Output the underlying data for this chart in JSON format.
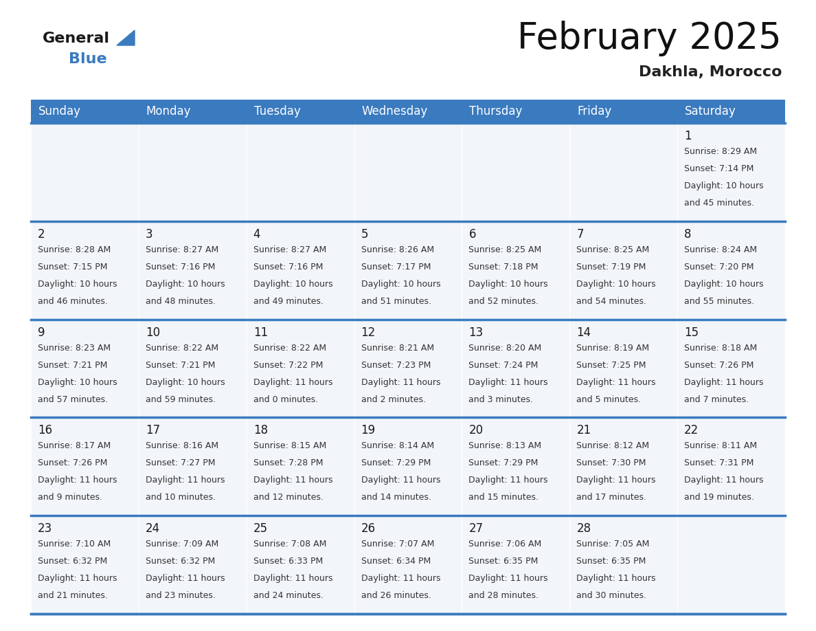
{
  "title": "February 2025",
  "subtitle": "Dakhla, Morocco",
  "days_of_week": [
    "Sunday",
    "Monday",
    "Tuesday",
    "Wednesday",
    "Thursday",
    "Friday",
    "Saturday"
  ],
  "header_bg": "#3a7abf",
  "header_text": "#ffffff",
  "cell_bg": "#f2f5f9",
  "day_number_color": "#1a1a1a",
  "text_color": "#333333",
  "grid_line_color": "#3a7abf",
  "logo_general_color": "#1a1a1a",
  "logo_blue_color": "#3a7abf",
  "logo_triangle_color": "#3a7abf",
  "calendar": [
    [
      null,
      null,
      null,
      null,
      null,
      null,
      {
        "day": 1,
        "sunrise": "8:29 AM",
        "sunset": "7:14 PM",
        "daylight": "10 hours and 45 minutes."
      }
    ],
    [
      {
        "day": 2,
        "sunrise": "8:28 AM",
        "sunset": "7:15 PM",
        "daylight": "10 hours and 46 minutes."
      },
      {
        "day": 3,
        "sunrise": "8:27 AM",
        "sunset": "7:16 PM",
        "daylight": "10 hours and 48 minutes."
      },
      {
        "day": 4,
        "sunrise": "8:27 AM",
        "sunset": "7:16 PM",
        "daylight": "10 hours and 49 minutes."
      },
      {
        "day": 5,
        "sunrise": "8:26 AM",
        "sunset": "7:17 PM",
        "daylight": "10 hours and 51 minutes."
      },
      {
        "day": 6,
        "sunrise": "8:25 AM",
        "sunset": "7:18 PM",
        "daylight": "10 hours and 52 minutes."
      },
      {
        "day": 7,
        "sunrise": "8:25 AM",
        "sunset": "7:19 PM",
        "daylight": "10 hours and 54 minutes."
      },
      {
        "day": 8,
        "sunrise": "8:24 AM",
        "sunset": "7:20 PM",
        "daylight": "10 hours and 55 minutes."
      }
    ],
    [
      {
        "day": 9,
        "sunrise": "8:23 AM",
        "sunset": "7:21 PM",
        "daylight": "10 hours and 57 minutes."
      },
      {
        "day": 10,
        "sunrise": "8:22 AM",
        "sunset": "7:21 PM",
        "daylight": "10 hours and 59 minutes."
      },
      {
        "day": 11,
        "sunrise": "8:22 AM",
        "sunset": "7:22 PM",
        "daylight": "11 hours and 0 minutes."
      },
      {
        "day": 12,
        "sunrise": "8:21 AM",
        "sunset": "7:23 PM",
        "daylight": "11 hours and 2 minutes."
      },
      {
        "day": 13,
        "sunrise": "8:20 AM",
        "sunset": "7:24 PM",
        "daylight": "11 hours and 3 minutes."
      },
      {
        "day": 14,
        "sunrise": "8:19 AM",
        "sunset": "7:25 PM",
        "daylight": "11 hours and 5 minutes."
      },
      {
        "day": 15,
        "sunrise": "8:18 AM",
        "sunset": "7:26 PM",
        "daylight": "11 hours and 7 minutes."
      }
    ],
    [
      {
        "day": 16,
        "sunrise": "8:17 AM",
        "sunset": "7:26 PM",
        "daylight": "11 hours and 9 minutes."
      },
      {
        "day": 17,
        "sunrise": "8:16 AM",
        "sunset": "7:27 PM",
        "daylight": "11 hours and 10 minutes."
      },
      {
        "day": 18,
        "sunrise": "8:15 AM",
        "sunset": "7:28 PM",
        "daylight": "11 hours and 12 minutes."
      },
      {
        "day": 19,
        "sunrise": "8:14 AM",
        "sunset": "7:29 PM",
        "daylight": "11 hours and 14 minutes."
      },
      {
        "day": 20,
        "sunrise": "8:13 AM",
        "sunset": "7:29 PM",
        "daylight": "11 hours and 15 minutes."
      },
      {
        "day": 21,
        "sunrise": "8:12 AM",
        "sunset": "7:30 PM",
        "daylight": "11 hours and 17 minutes."
      },
      {
        "day": 22,
        "sunrise": "8:11 AM",
        "sunset": "7:31 PM",
        "daylight": "11 hours and 19 minutes."
      }
    ],
    [
      {
        "day": 23,
        "sunrise": "7:10 AM",
        "sunset": "6:32 PM",
        "daylight": "11 hours and 21 minutes."
      },
      {
        "day": 24,
        "sunrise": "7:09 AM",
        "sunset": "6:32 PM",
        "daylight": "11 hours and 23 minutes."
      },
      {
        "day": 25,
        "sunrise": "7:08 AM",
        "sunset": "6:33 PM",
        "daylight": "11 hours and 24 minutes."
      },
      {
        "day": 26,
        "sunrise": "7:07 AM",
        "sunset": "6:34 PM",
        "daylight": "11 hours and 26 minutes."
      },
      {
        "day": 27,
        "sunrise": "7:06 AM",
        "sunset": "6:35 PM",
        "daylight": "11 hours and 28 minutes."
      },
      {
        "day": 28,
        "sunrise": "7:05 AM",
        "sunset": "6:35 PM",
        "daylight": "11 hours and 30 minutes."
      },
      null
    ]
  ]
}
